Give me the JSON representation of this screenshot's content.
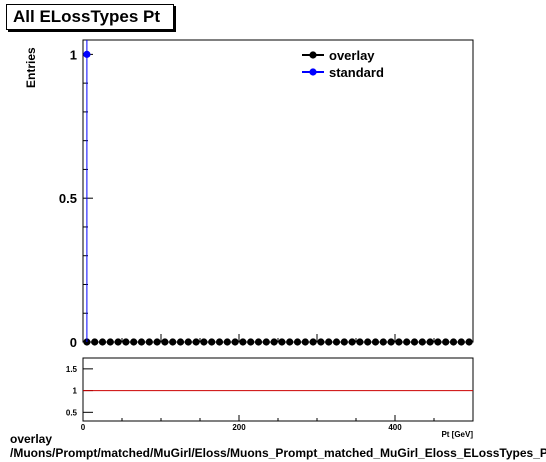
{
  "chart_data": [
    {
      "type": "scatter",
      "title": "All ELossTypes Pt",
      "ylabel": "Entries",
      "xlim": [
        0,
        500
      ],
      "ylim": [
        0,
        1.05
      ],
      "yticks": [
        0,
        0.5,
        1
      ],
      "ytick_labels": [
        "0",
        "0.5",
        "1"
      ],
      "legend_position": "top-right",
      "series": [
        {
          "name": "overlay",
          "color": "#000000",
          "x": [
            5,
            15,
            25,
            35,
            45,
            55,
            65,
            75,
            85,
            95,
            105,
            115,
            125,
            135,
            145,
            155,
            165,
            175,
            185,
            195,
            205,
            215,
            225,
            235,
            245,
            255,
            265,
            275,
            285,
            295,
            305,
            315,
            325,
            335,
            345,
            355,
            365,
            375,
            385,
            395,
            405,
            415,
            425,
            435,
            445,
            455,
            465,
            475,
            485,
            495
          ],
          "y": [
            0,
            0,
            0,
            0,
            0,
            0,
            0,
            0,
            0,
            0,
            0,
            0,
            0,
            0,
            0,
            0,
            0,
            0,
            0,
            0,
            0,
            0,
            0,
            0,
            0,
            0,
            0,
            0,
            0,
            0,
            0,
            0,
            0,
            0,
            0,
            0,
            0,
            0,
            0,
            0,
            0,
            0,
            0,
            0,
            0,
            0,
            0,
            0,
            0,
            0
          ]
        },
        {
          "name": "standard",
          "color": "#0000ff",
          "x": [
            5
          ],
          "y": [
            1
          ]
        }
      ]
    },
    {
      "type": "line",
      "xlim": [
        0,
        500
      ],
      "ylim": [
        0.3,
        1.75
      ],
      "xticks": [
        0,
        200,
        400
      ],
      "xtick_labels": [
        "0",
        "200",
        "400"
      ],
      "yticks": [
        0.5,
        1,
        1.5
      ],
      "ytick_labels": [
        "0.5",
        "1",
        "1.5"
      ],
      "xlabel": "Pt [GeV]",
      "reference_line": 1,
      "reference_color": "#cc0000"
    }
  ],
  "footer": {
    "line1": "overlay",
    "line2": "/Muons/Prompt/matched/MuGirl/Eloss/Muons_Prompt_matched_MuGirl_Eloss_ELossTypes_Pt"
  }
}
